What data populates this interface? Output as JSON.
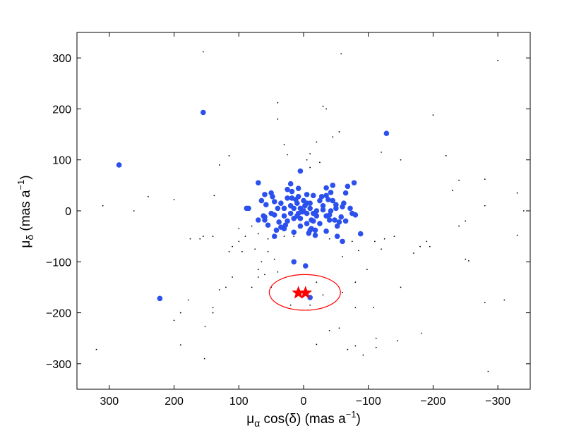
{
  "chart_data": {
    "type": "scatter",
    "title": "",
    "xlabel": {
      "main": "μ",
      "sub": "α",
      "rest": " cos(δ) (mas a",
      "sup": "−1",
      "end": ")"
    },
    "ylabel": {
      "main": "μ",
      "sub": "δ",
      "rest": " (mas a",
      "sup": "−1",
      "end": ")"
    },
    "xlim": [
      350,
      -350
    ],
    "ylim": [
      -350,
      350
    ],
    "x_reversed": true,
    "xticks": [
      300,
      200,
      100,
      0,
      -100,
      -200,
      -300
    ],
    "yticks": [
      -300,
      -200,
      -100,
      0,
      100,
      200,
      300
    ],
    "xtick_labels": [
      "300",
      "200",
      "100",
      "0",
      "−100",
      "−200",
      "−300"
    ],
    "ytick_labels": [
      "−300",
      "−200",
      "−100",
      "0",
      "100",
      "200",
      "300"
    ],
    "grid": false,
    "legend": "none",
    "colors": {
      "blue": "#2b50ee",
      "black": "#000000",
      "red": "#ff0000"
    },
    "series": [
      {
        "marker": "small-dot",
        "color": "#000000",
        "points": [
          [
            155,
            312
          ],
          [
            -58,
            308
          ],
          [
            -300,
            295
          ],
          [
            40,
            212
          ],
          [
            -30,
            205
          ],
          [
            -35,
            200
          ],
          [
            40,
            180
          ],
          [
            -200,
            188
          ],
          [
            -55,
            155
          ],
          [
            -45,
            145
          ],
          [
            -20,
            135
          ],
          [
            30,
            130
          ],
          [
            -10,
            112
          ],
          [
            -120,
            115
          ],
          [
            25,
            110
          ],
          [
            115,
            108
          ],
          [
            -220,
            108
          ],
          [
            -150,
            100
          ],
          [
            -5,
            100
          ],
          [
            -25,
            95
          ],
          [
            130,
            90
          ],
          [
            200,
            22
          ],
          [
            240,
            28
          ],
          [
            -10,
            85
          ],
          [
            310,
            10
          ],
          [
            262,
            0
          ],
          [
            -280,
            62
          ],
          [
            -330,
            35
          ],
          [
            -240,
            60
          ],
          [
            -280,
            10
          ],
          [
            -230,
            40
          ],
          [
            -340,
            0
          ],
          [
            138,
            30
          ],
          [
            -330,
            -48
          ],
          [
            -250,
            -20
          ],
          [
            70,
            -45
          ],
          [
            80,
            -30
          ],
          [
            100,
            -60
          ],
          [
            90,
            -50
          ],
          [
            55,
            -55
          ],
          [
            30,
            -50
          ],
          [
            -40,
            -55
          ],
          [
            -75,
            -60
          ],
          [
            -85,
            -78
          ],
          [
            -195,
            -70
          ],
          [
            -250,
            -95
          ],
          [
            -255,
            -98
          ],
          [
            -170,
            -83
          ],
          [
            -140,
            -50
          ],
          [
            -125,
            -55
          ],
          [
            155,
            -50
          ],
          [
            175,
            -55
          ],
          [
            140,
            -50
          ],
          [
            115,
            -80
          ],
          [
            95,
            -80
          ],
          [
            55,
            -80
          ],
          [
            45,
            -95
          ],
          [
            65,
            -100
          ],
          [
            40,
            -120
          ],
          [
            60,
            -125
          ],
          [
            70,
            -130
          ],
          [
            70,
            -115
          ],
          [
            110,
            -130
          ],
          [
            120,
            -150
          ],
          [
            130,
            -155
          ],
          [
            80,
            -150
          ],
          [
            -150,
            -150
          ],
          [
            -80,
            -140
          ],
          [
            -60,
            -160
          ],
          [
            -20,
            -140
          ],
          [
            50,
            -150
          ],
          [
            10,
            -160
          ],
          [
            -10,
            -185
          ],
          [
            20,
            -185
          ],
          [
            -30,
            -165
          ],
          [
            -80,
            -190
          ],
          [
            -108,
            -190
          ],
          [
            140,
            -190
          ],
          [
            140,
            -200
          ],
          [
            152,
            -227
          ],
          [
            200,
            -215
          ],
          [
            178,
            -175
          ],
          [
            190,
            -200
          ],
          [
            190,
            -263
          ],
          [
            -20,
            -262
          ],
          [
            -80,
            -265
          ],
          [
            -112,
            -268
          ],
          [
            -182,
            -240
          ],
          [
            -280,
            -180
          ],
          [
            -310,
            -175
          ],
          [
            -240,
            -30
          ],
          [
            -190,
            -60
          ],
          [
            -180,
            -70
          ],
          [
            -55,
            -230
          ],
          [
            -40,
            -235
          ],
          [
            -68,
            -272
          ],
          [
            -92,
            -283
          ],
          [
            -112,
            -250
          ],
          [
            -145,
            -255
          ],
          [
            -285,
            -315
          ],
          [
            320,
            -272
          ],
          [
            153,
            -290
          ],
          [
            160,
            -55
          ],
          [
            110,
            -70
          ],
          [
            75,
            -75
          ],
          [
            -60,
            -90
          ],
          [
            -110,
            -60
          ],
          [
            -120,
            -75
          ],
          [
            -98,
            -115
          ],
          [
            15,
            -50
          ],
          [
            100,
            -35
          ]
        ]
      },
      {
        "marker": "dot",
        "color": "#2b50ee",
        "points": [
          [
            155,
            193
          ],
          [
            285,
            90
          ],
          [
            -128,
            152
          ],
          [
            222,
            -172
          ],
          [
            5,
            78
          ],
          [
            20,
            53
          ],
          [
            70,
            55
          ],
          [
            -35,
            45
          ],
          [
            -68,
            48
          ],
          [
            -78,
            55
          ],
          [
            25,
            42
          ],
          [
            -65,
            35
          ],
          [
            48,
            28
          ],
          [
            88,
            5
          ],
          [
            -60,
            8
          ],
          [
            -72,
            5
          ],
          [
            -75,
            -5
          ],
          [
            -80,
            -8
          ],
          [
            -35,
            -10
          ],
          [
            -40,
            -18
          ],
          [
            -55,
            -22
          ],
          [
            -88,
            -45
          ],
          [
            -60,
            -60
          ],
          [
            -52,
            -50
          ],
          [
            -18,
            -48
          ],
          [
            -10,
            -38
          ],
          [
            15,
            -42
          ],
          [
            30,
            -35
          ],
          [
            55,
            -28
          ],
          [
            70,
            -18
          ],
          [
            -12,
            -35
          ],
          [
            -35,
            -40
          ],
          [
            60,
            -12
          ],
          [
            85,
            5
          ],
          [
            35,
            15
          ],
          [
            45,
            -8
          ],
          [
            -45,
            20
          ],
          [
            -50,
            5
          ],
          [
            -40,
            -8
          ],
          [
            -30,
            2
          ],
          [
            25,
            -20
          ],
          [
            30,
            5
          ],
          [
            18,
            25
          ],
          [
            8,
            28
          ],
          [
            -5,
            32
          ],
          [
            -15,
            30
          ],
          [
            -25,
            20
          ],
          [
            -30,
            10
          ],
          [
            -20,
            0
          ],
          [
            -15,
            -20
          ],
          [
            -5,
            -25
          ],
          [
            5,
            -30
          ],
          [
            15,
            -15
          ],
          [
            20,
            -5
          ],
          [
            10,
            15
          ],
          [
            0,
            20
          ],
          [
            -10,
            15
          ],
          [
            5,
            5
          ],
          [
            0,
            0
          ],
          [
            10,
            -10
          ],
          [
            -5,
            -5
          ],
          [
            -10,
            5
          ],
          [
            15,
            5
          ],
          [
            -15,
            -5
          ],
          [
            5,
            -15
          ],
          [
            -5,
            15
          ],
          [
            20,
            10
          ],
          [
            -20,
            -10
          ],
          [
            12,
            22
          ],
          [
            -12,
            -18
          ],
          [
            40,
            5
          ],
          [
            -42,
            0
          ],
          [
            2,
            -2
          ],
          [
            30,
            -10
          ],
          [
            -25,
            -25
          ],
          [
            25,
            25
          ],
          [
            -28,
            28
          ],
          [
            28,
            -28
          ],
          [
            -2,
            10
          ],
          [
            8,
            -5
          ],
          [
            38,
            -22
          ],
          [
            -38,
            22
          ],
          [
            45,
            18
          ],
          [
            -48,
            -18
          ],
          [
            50,
            -5
          ],
          [
            -50,
            12
          ],
          [
            -35,
            30
          ],
          [
            35,
            -32
          ],
          [
            18,
            38
          ],
          [
            -18,
            -38
          ],
          [
            60,
            -18
          ],
          [
            -62,
            15
          ],
          [
            -58,
            -12
          ],
          [
            58,
            12
          ],
          [
            -8,
            -44
          ],
          [
            8,
            44
          ],
          [
            65,
            20
          ],
          [
            -65,
            -20
          ],
          [
            42,
            -38
          ],
          [
            -42,
            36
          ],
          [
            50,
            35
          ],
          [
            -52,
            -30
          ],
          [
            45,
            -50
          ],
          [
            -45,
            50
          ],
          [
            62,
            -10
          ],
          [
            -3,
            -108
          ],
          [
            15,
            -100
          ],
          [
            -10,
            -170
          ],
          [
            60,
            32
          ]
        ]
      },
      {
        "marker": "star",
        "color": "#ff0000",
        "points": [
          [
            8,
            -161
          ],
          [
            -3,
            -161
          ]
        ]
      }
    ],
    "annotations": [
      {
        "type": "ellipse",
        "color": "#ff0000",
        "cx": -2,
        "cy": -160,
        "rx": 55,
        "ry": 35
      }
    ]
  }
}
